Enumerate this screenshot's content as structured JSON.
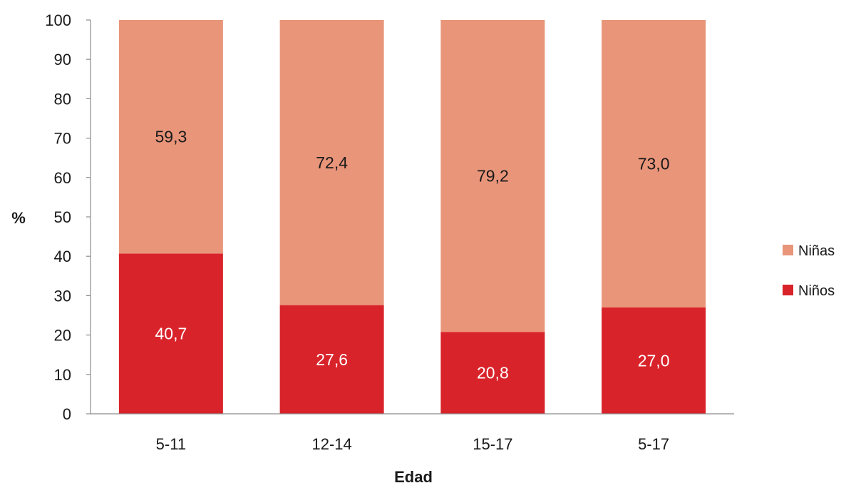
{
  "chart_data": {
    "type": "bar",
    "stacked": true,
    "categories": [
      "5-11",
      "12-14",
      "15-17",
      "5-17"
    ],
    "series": [
      {
        "name": "Niños",
        "values": [
          40.7,
          27.6,
          20.8,
          27.0
        ],
        "labels": [
          "40,7",
          "27,6",
          "20,8",
          "27,0"
        ],
        "color": "#d9232a",
        "label_color": "#ffffff"
      },
      {
        "name": "Niñas",
        "values": [
          59.3,
          72.4,
          79.2,
          73.0
        ],
        "labels": [
          "59,3",
          "72,4",
          "79,2",
          "73,0"
        ],
        "color": "#e9957a",
        "label_color": "#1a1a1a"
      }
    ],
    "xlabel": "Edad",
    "ylabel": "%",
    "ylim": [
      0,
      100
    ],
    "yticks": [
      "0",
      "10",
      "20",
      "30",
      "40",
      "50",
      "60",
      "70",
      "80",
      "90",
      "100"
    ],
    "grid": false,
    "legend_position": "right",
    "legend_order": [
      "Niñas",
      "Niños"
    ]
  }
}
